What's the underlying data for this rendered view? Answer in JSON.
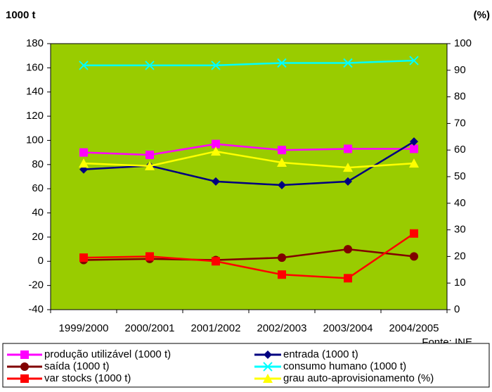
{
  "chart_data": {
    "type": "line",
    "y_label": "1000 t",
    "y2_label": "(%)",
    "source": "Fonte: INE",
    "categories": [
      "1999/2000",
      "2000/2001",
      "2001/2002",
      "2002/2003",
      "2003/2004",
      "2004/2005"
    ],
    "series": [
      {
        "name": "produção utilizável (1000 t)",
        "color": "#ff00ff",
        "marker": "square",
        "values": [
          90,
          88,
          97,
          92,
          93,
          93
        ]
      },
      {
        "name": "entrada (1000 t)",
        "color": "#000080",
        "marker": "diamond",
        "values": [
          76,
          79,
          66,
          63,
          66,
          99
        ]
      },
      {
        "name": "saída (1000 t)",
        "color": "#800000",
        "marker": "circle",
        "values": [
          1,
          2,
          1,
          3,
          10,
          4
        ]
      },
      {
        "name": "consumo humano (1000 t)",
        "color": "#00ffff",
        "marker": "x",
        "values": [
          162,
          162,
          162,
          164,
          164,
          166
        ]
      },
      {
        "name": "var stocks (1000 t)",
        "color": "#ff0000",
        "marker": "square",
        "values": [
          3,
          4,
          0,
          -11,
          -14,
          23
        ]
      },
      {
        "name": "grau auto-aprovisionamento (%)",
        "color": "#ffff00",
        "marker": "triangle",
        "axis": "y2",
        "values": [
          55,
          54,
          59.5,
          55.3,
          53.4,
          55
        ]
      }
    ],
    "ylim": [
      -40,
      180
    ],
    "yticks": [
      -40,
      -20,
      0,
      20,
      40,
      60,
      80,
      100,
      120,
      140,
      160,
      180
    ],
    "y2lim": [
      0,
      100
    ],
    "y2ticks": [
      0,
      10,
      20,
      30,
      40,
      50,
      60,
      70,
      80,
      90,
      100
    ],
    "plot_background": "#99cc00"
  }
}
